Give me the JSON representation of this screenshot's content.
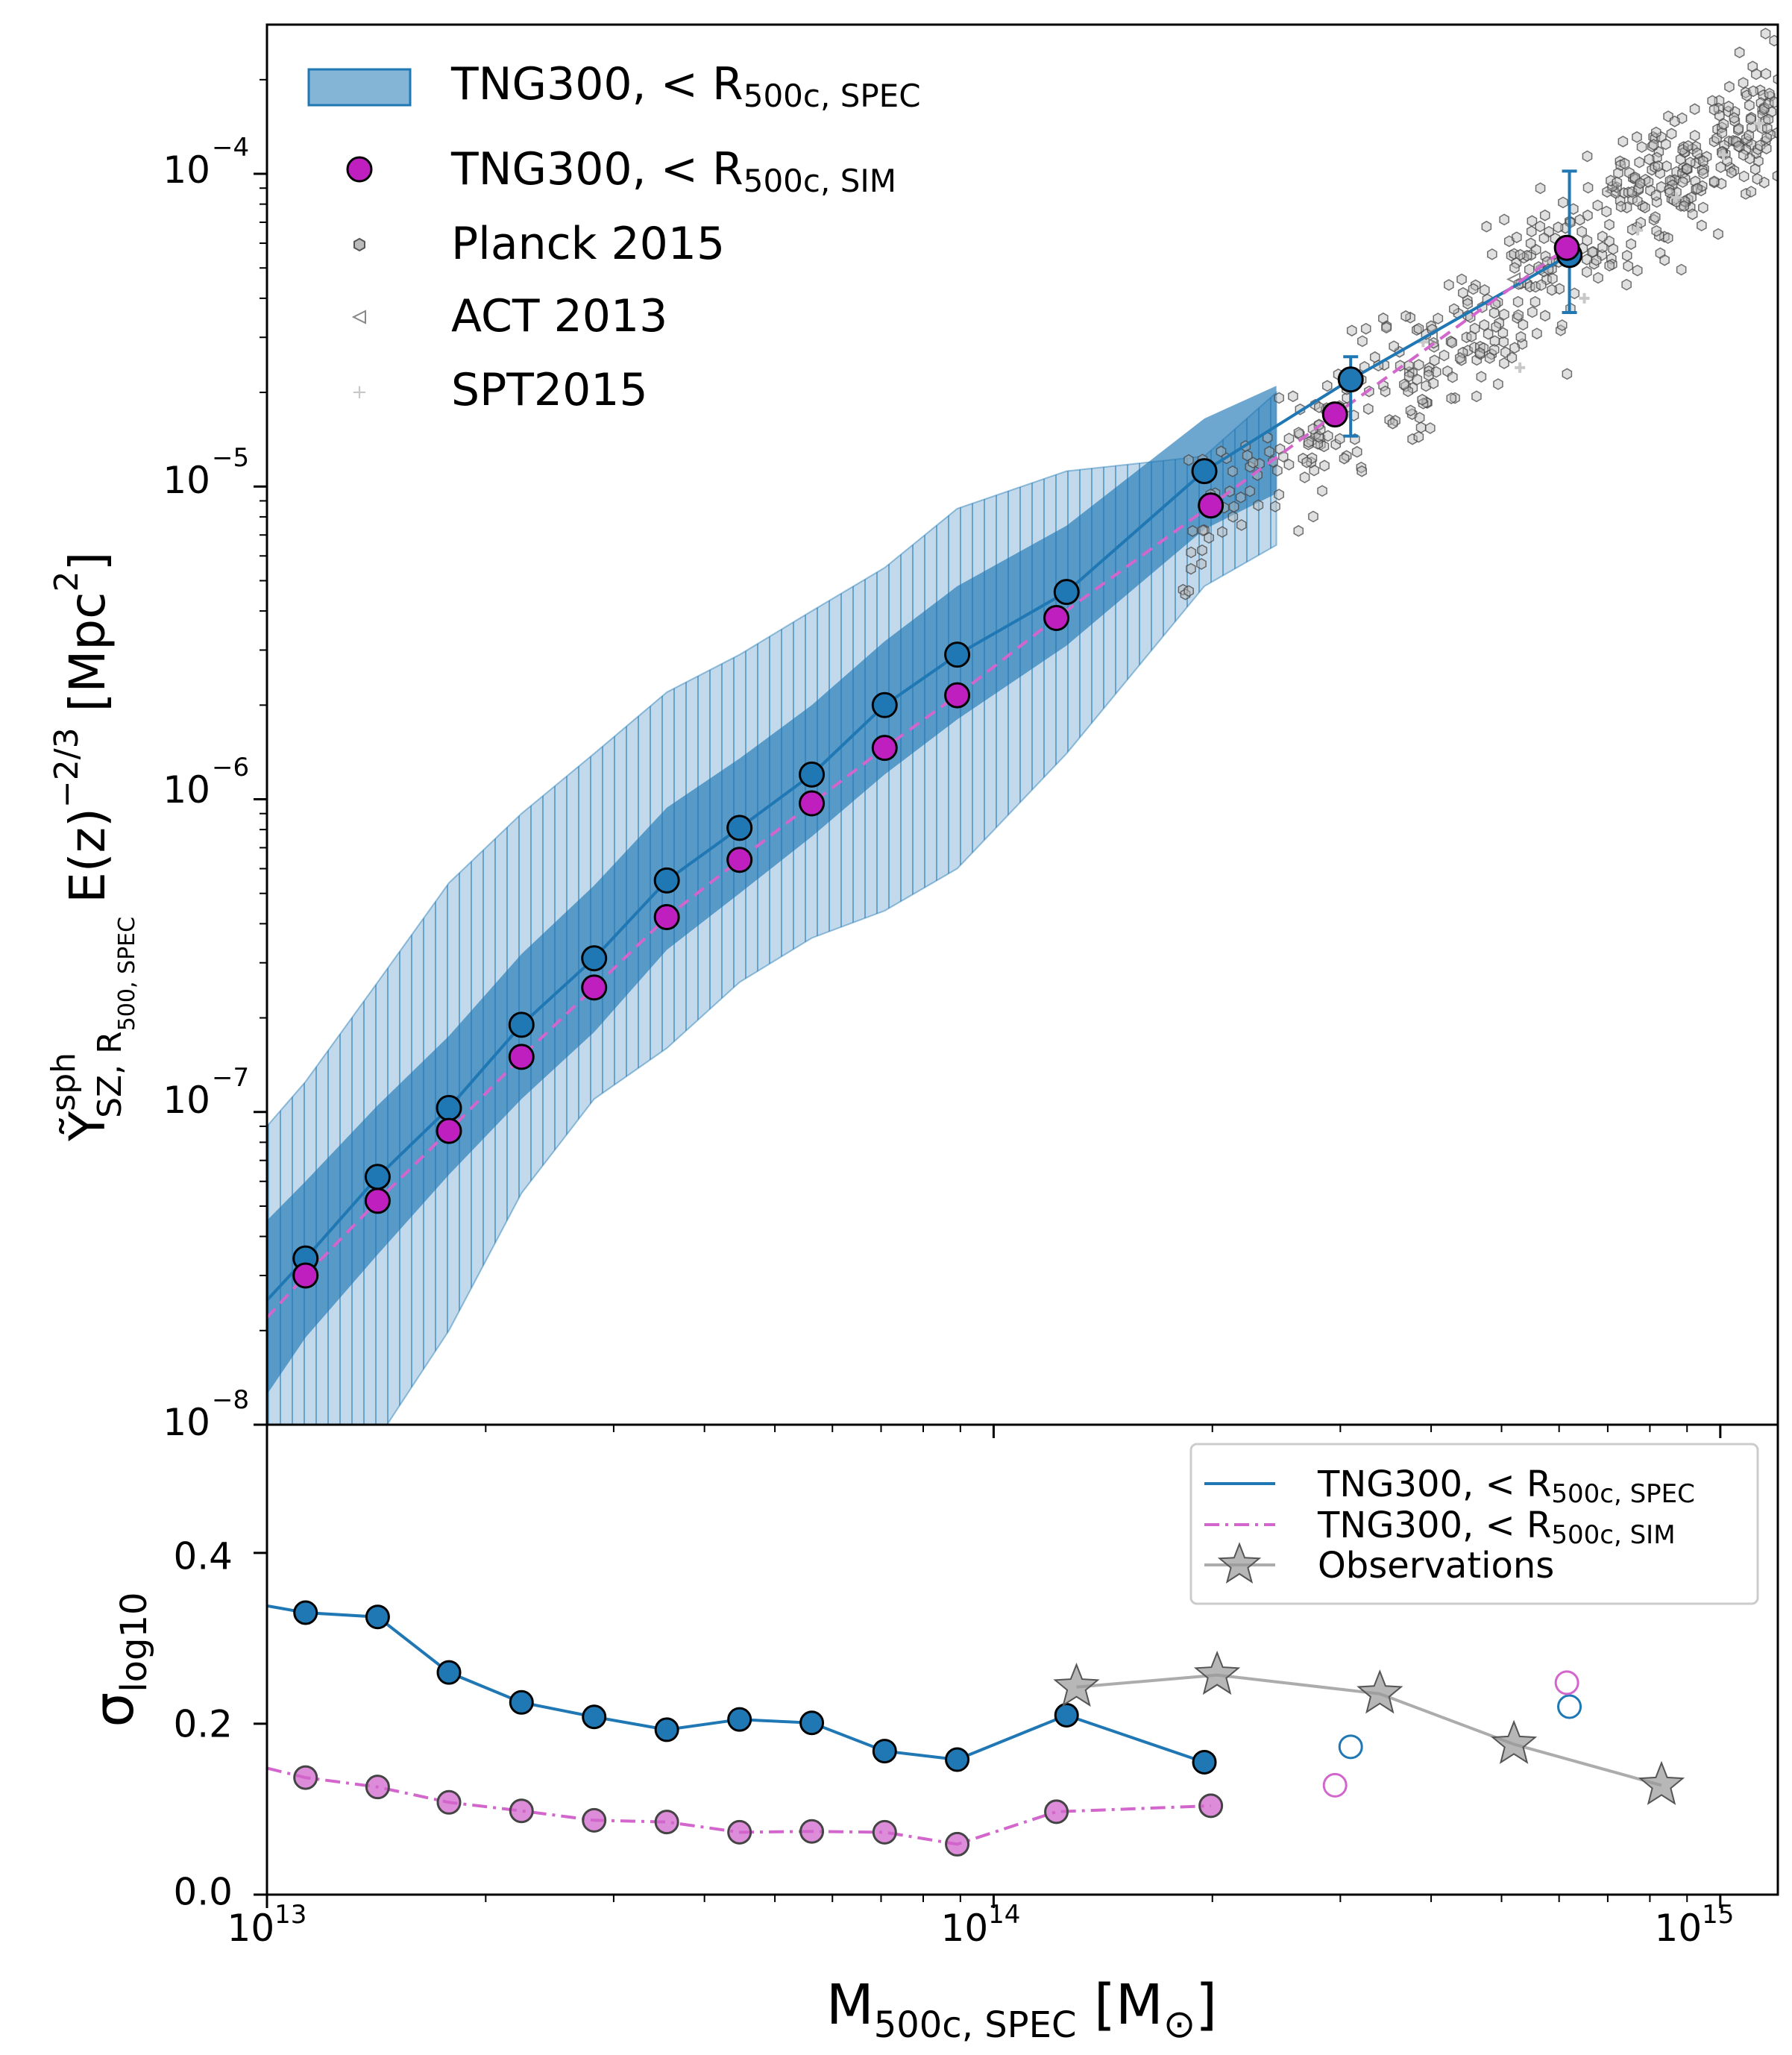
{
  "chart_data": [
    {
      "panel": "top",
      "type": "scatter",
      "xscale": "log",
      "yscale": "log",
      "xlim": [
        10000000000000.0,
        1200000000000000.0
      ],
      "ylim": [
        1e-08,
        0.0003
      ],
      "ylabel_parts": {
        "symbol": "Ỹ",
        "superscript": "sph",
        "subscript": "SZ, R",
        "subsub": "500, SPEC",
        "rest": "E(z)",
        "exp": "−2/3",
        "unit": " [Mpc",
        "unit_exp": "2",
        "unit_close": "]"
      },
      "ytick_labels": [
        {
          "value": 1e-08,
          "mant": "10",
          "exp": "−8"
        },
        {
          "value": 1e-07,
          "mant": "10",
          "exp": "−7"
        },
        {
          "value": 1e-06,
          "mant": "10",
          "exp": "−6"
        },
        {
          "value": 1e-05,
          "mant": "10",
          "exp": "−5"
        },
        {
          "value": 0.0001,
          "mant": "10",
          "exp": "−4"
        }
      ],
      "legend": [
        {
          "kind": "band",
          "text": "TNG300, < R",
          "sub": "500c, SPEC"
        },
        {
          "kind": "marker-magenta",
          "text": "TNG300, < R",
          "sub": "500c, SIM"
        },
        {
          "kind": "hexagon",
          "text": "Planck 2015"
        },
        {
          "kind": "triangle",
          "text": "ACT 2013"
        },
        {
          "kind": "plus",
          "text": "SPT2015"
        }
      ],
      "series": [
        {
          "name": "TNG300, < R500c, SPEC",
          "color": "#1f77b4",
          "x": [
            11300000000000.0,
            14200000000000.0,
            17800000000000.0,
            22400000000000.0,
            28200000000000.0,
            35500000000000.0,
            44700000000000.0,
            56200000000000.0,
            70800000000000.0,
            89100000000000.0,
            126000000000000.0,
            195000000000000.0,
            310000000000000.0,
            620000000000000.0
          ],
          "y": [
            3.4e-08,
            6.2e-08,
            1.03e-07,
            1.9e-07,
            3.1e-07,
            5.5e-07,
            8.1e-07,
            1.2e-06,
            2e-06,
            2.9e-06,
            4.6e-06,
            1.12e-05,
            2.2e-05,
            5.5e-05
          ],
          "yerr_last_two": [
            [
              1.45e-05,
              2.6e-05
            ],
            [
              3.6e-05,
              0.000102
            ]
          ]
        },
        {
          "name": "TNG300, < R500c, SIM",
          "color": "#bf1fbf",
          "x": [
            11300000000000.0,
            14200000000000.0,
            17800000000000.0,
            22400000000000.0,
            28200000000000.0,
            35500000000000.0,
            44700000000000.0,
            56200000000000.0,
            70800000000000.0,
            89100000000000.0,
            122000000000000.0,
            199000000000000.0,
            295000000000000.0,
            615000000000000.0
          ],
          "y": [
            3e-08,
            5.2e-08,
            8.7e-08,
            1.5e-07,
            2.5e-07,
            4.2e-07,
            6.4e-07,
            9.7e-07,
            1.46e-06,
            2.15e-06,
            3.8e-06,
            8.7e-06,
            1.7e-05,
            5.8e-05
          ]
        }
      ],
      "bands": {
        "x": [
          10000000000000.0,
          11300000000000.0,
          14200000000000.0,
          17800000000000.0,
          22400000000000.0,
          28200000000000.0,
          35500000000000.0,
          44700000000000.0,
          56200000000000.0,
          70800000000000.0,
          89100000000000.0,
          126000000000000.0,
          195000000000000.0,
          245000000000000.0
        ],
        "inner_lo": [
          1.25e-08,
          1.9e-08,
          3.5e-08,
          6.3e-08,
          1.1e-07,
          1.8e-07,
          3.3e-07,
          5e-07,
          7.6e-07,
          1.2e-06,
          1.8e-06,
          3.1e-06,
          7.3e-06,
          9.5e-06
        ],
        "inner_hi": [
          4.5e-08,
          6e-08,
          1.05e-07,
          1.75e-07,
          3.2e-07,
          5.3e-07,
          9.4e-07,
          1.35e-06,
          2e-06,
          3.2e-06,
          4.8e-06,
          7.5e-06,
          1.65e-05,
          2.1e-05
        ],
        "outer_lo": [
          5e-09,
          5e-09,
          9e-09,
          2e-08,
          5.5e-08,
          1.1e-07,
          1.6e-07,
          2.6e-07,
          3.6e-07,
          4.4e-07,
          6e-07,
          1.4e-06,
          4.8e-06,
          6.5e-06
        ],
        "outer_hi": [
          9e-08,
          1.25e-07,
          2.6e-07,
          5.4e-07,
          9e-07,
          1.4e-06,
          2.2e-06,
          2.9e-06,
          4e-06,
          5.5e-06,
          8.5e-06,
          1.12e-05,
          1.25e-05,
          2e-05
        ]
      },
      "observations": {
        "planck_2015": {
          "color": "#555555",
          "count": 520,
          "logx_range": [
            14.25,
            15.08
          ],
          "slope": 1.65,
          "intercept_at_1e15": 0.00012,
          "scatter_dex": 0.22
        },
        "act_2013": {
          "color": "#888888",
          "x": [
            400000000000000.0,
            520000000000000.0,
            710000000000000.0
          ],
          "y": [
            3e-05,
            4.6e-05,
            8.8e-05
          ]
        },
        "spt2015": {
          "color": "#c8c8c8",
          "x": [
            390000000000000.0,
            530000000000000.0,
            650000000000000.0,
            770000000000000.0,
            870000000000000.0,
            1010000000000000.0,
            1130000000000000.0
          ],
          "y": [
            2.9e-05,
            2.4e-05,
            4e-05,
            6.6e-05,
            8.4e-05,
            0.000115,
            0.000145
          ]
        }
      }
    },
    {
      "panel": "bottom",
      "type": "line",
      "xscale": "log",
      "xlim": [
        10000000000000.0,
        1200000000000000.0
      ],
      "ylim": [
        0.0,
        0.55
      ],
      "ylabel_parts": {
        "symbol": "σ",
        "sub": "log10"
      },
      "xlabel_parts": {
        "main": "M",
        "sub": "500c, SPEC",
        "unit": " [M",
        "unit_sub": "⊙",
        "close": "]"
      },
      "ytick_labels": [
        "0.0",
        "0.2",
        "0.4"
      ],
      "ytick_values": [
        0.0,
        0.2,
        0.4
      ],
      "xtick_labels": [
        {
          "value": 10000000000000.0,
          "mant": "10",
          "exp": "13"
        },
        {
          "value": 100000000000000.0,
          "mant": "10",
          "exp": "14"
        },
        {
          "value": 1000000000000000.0,
          "mant": "10",
          "exp": "15"
        }
      ],
      "legend": [
        {
          "kind": "line-blue",
          "text": "TNG300, < R",
          "sub": "500c, SPEC"
        },
        {
          "kind": "line-magenta",
          "text": "TNG300, < R",
          "sub": "500c, SIM"
        },
        {
          "kind": "line-star",
          "text": "Observations"
        }
      ],
      "series": [
        {
          "name": "TNG300, < R500c, SPEC",
          "color": "#1f77b4",
          "x": [
            11300000000000.0,
            14200000000000.0,
            17800000000000.0,
            22400000000000.0,
            28200000000000.0,
            35500000000000.0,
            44700000000000.0,
            56200000000000.0,
            70800000000000.0,
            89100000000000.0,
            126000000000000.0,
            195000000000000.0
          ],
          "y": [
            0.33,
            0.325,
            0.26,
            0.225,
            0.208,
            0.193,
            0.205,
            0.201,
            0.168,
            0.158,
            0.21,
            0.155
          ],
          "line_start": [
            10000000000000.0,
            0.338
          ],
          "open": [
            [
              310000000000000.0,
              0.173
            ],
            [
              620000000000000.0,
              0.22
            ]
          ]
        },
        {
          "name": "TNG300, < R500c, SIM",
          "color": "#d266cc",
          "x": [
            11300000000000.0,
            14200000000000.0,
            17800000000000.0,
            22400000000000.0,
            28200000000000.0,
            35500000000000.0,
            44700000000000.0,
            56200000000000.0,
            70800000000000.0,
            89100000000000.0,
            122000000000000.0,
            199000000000000.0
          ],
          "y": [
            0.137,
            0.126,
            0.108,
            0.098,
            0.087,
            0.085,
            0.073,
            0.074,
            0.073,
            0.059,
            0.097,
            0.104
          ],
          "line_start": [
            10000000000000.0,
            0.148
          ],
          "open": [
            [
              295000000000000.0,
              0.128
            ],
            [
              615000000000000.0,
              0.248
            ]
          ]
        },
        {
          "name": "Observations",
          "color": "#808080",
          "x": [
            130000000000000.0,
            203000000000000.0,
            340000000000000.0,
            520000000000000.0,
            830000000000000.0
          ],
          "y": [
            0.243,
            0.257,
            0.235,
            0.176,
            0.128
          ]
        }
      ]
    }
  ]
}
